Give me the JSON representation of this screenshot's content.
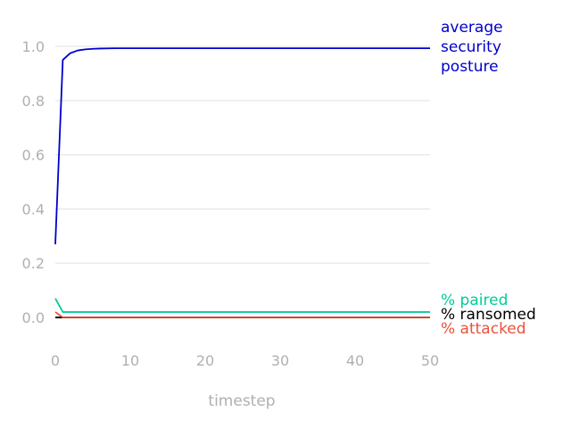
{
  "chart_data": {
    "type": "line",
    "title": "",
    "xlabel": "timestep",
    "ylabel": "",
    "xlim": [
      0,
      50
    ],
    "ylim": [
      -0.1,
      1.1
    ],
    "x_ticks": [
      0,
      10,
      20,
      30,
      40,
      50
    ],
    "y_ticks": [
      0.0,
      0.2,
      0.4,
      0.6,
      0.8,
      1.0
    ],
    "y_tick_labels": [
      "0.0",
      "0.2",
      "0.4",
      "0.6",
      "0.8",
      "1.0"
    ],
    "grid": "horizontal",
    "legend": "direct labels at right end of lines",
    "series": [
      {
        "name": "average security posture",
        "label_lines": [
          "average",
          "security",
          "posture"
        ],
        "color": "#0000cc",
        "x": [
          0,
          1,
          2,
          3,
          4,
          5,
          6,
          8,
          10,
          15,
          20,
          30,
          40,
          50
        ],
        "values": [
          0.27,
          0.95,
          0.975,
          0.985,
          0.989,
          0.991,
          0.992,
          0.993,
          0.993,
          0.993,
          0.993,
          0.993,
          0.993,
          0.993
        ]
      },
      {
        "name": "% paired",
        "label_lines": [
          "% paired"
        ],
        "color": "#00cc99",
        "x": [
          0,
          1,
          2,
          5,
          10,
          15,
          20,
          25,
          30,
          35,
          40,
          45,
          50
        ],
        "values": [
          0.07,
          0.02,
          0.02,
          0.02,
          0.02,
          0.02,
          0.02,
          0.02,
          0.02,
          0.02,
          0.02,
          0.02,
          0.02
        ]
      },
      {
        "name": "% ransomed",
        "label_lines": [
          "% ransomed"
        ],
        "color": "#000000",
        "x": [
          0,
          50
        ],
        "values": [
          0.0,
          0.0
        ]
      },
      {
        "name": "% attacked",
        "label_lines": [
          "% attacked"
        ],
        "color": "#e8523a",
        "x": [
          0,
          1,
          2,
          50
        ],
        "values": [
          0.02,
          0.0,
          0.0,
          0.0
        ]
      }
    ]
  }
}
